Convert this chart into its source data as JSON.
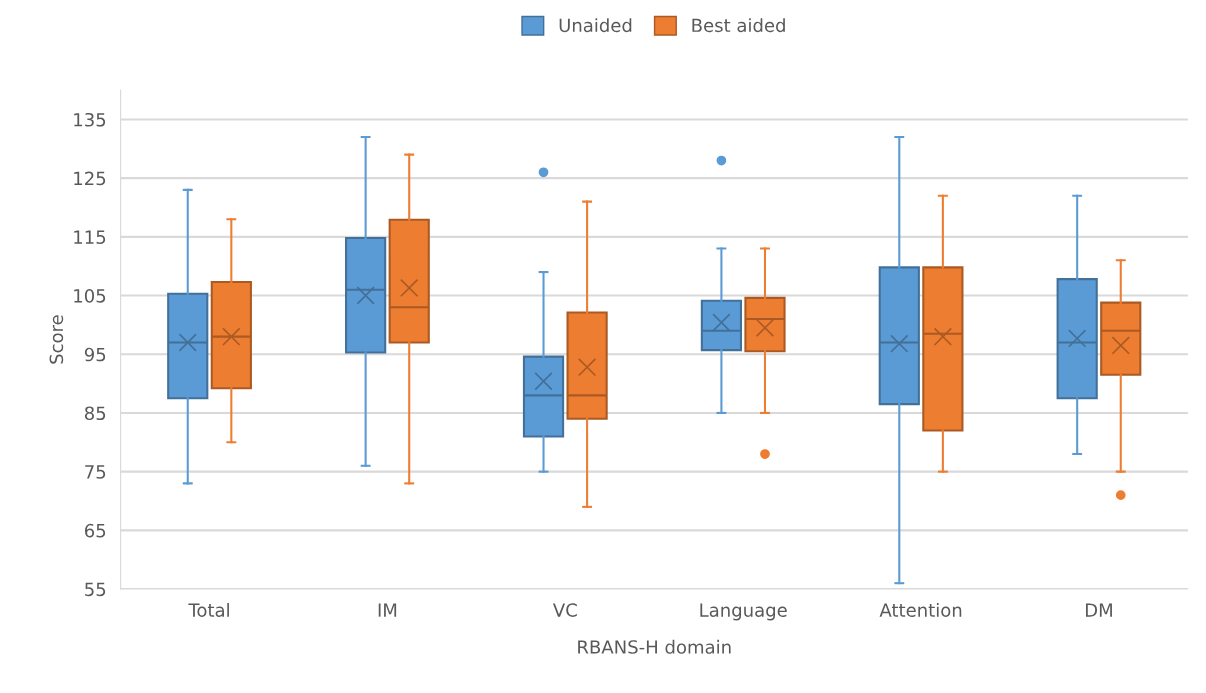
{
  "chart_data": {
    "type": "box",
    "xlabel": "RBANS-H domain",
    "ylabel": "Score",
    "categories": [
      "Total",
      "IM",
      "VC",
      "Language",
      "Attention",
      "DM"
    ],
    "ylim": [
      55,
      140
    ],
    "yticks": [
      55,
      65,
      75,
      85,
      95,
      105,
      115,
      125,
      135
    ],
    "grid": "y",
    "legend": "top",
    "marker": "cross",
    "series": [
      {
        "name": "Unaided",
        "color": "#5b9bd5",
        "boxes": [
          {
            "low": 73,
            "q1": 87.5,
            "median": 97,
            "q3": 105.3,
            "high": 123,
            "mean": 97
          },
          {
            "low": 76,
            "q1": 95.3,
            "median": 106,
            "q3": 114.8,
            "high": 132,
            "mean": 105
          },
          {
            "low": 75,
            "q1": 81,
            "median": 88,
            "q3": 94.6,
            "high": 109,
            "mean": 90.4,
            "outliers": [
              126
            ]
          },
          {
            "low": 85,
            "q1": 95.7,
            "median": 99,
            "q3": 104.1,
            "high": 113,
            "mean": 100.4,
            "outliers": [
              128
            ]
          },
          {
            "low": 56,
            "q1": 86.5,
            "median": 97,
            "q3": 109.8,
            "high": 132,
            "mean": 96.8
          },
          {
            "low": 78,
            "q1": 87.5,
            "median": 97,
            "q3": 107.8,
            "high": 122,
            "mean": 97.7
          }
        ]
      },
      {
        "name": "Best aided",
        "color": "#ed7d31",
        "boxes": [
          {
            "low": 80,
            "q1": 89.2,
            "median": 98,
            "q3": 107.3,
            "high": 118,
            "mean": 98
          },
          {
            "low": 73,
            "q1": 97,
            "median": 103,
            "q3": 117.9,
            "high": 129,
            "mean": 106.3
          },
          {
            "low": 69,
            "q1": 84,
            "median": 88,
            "q3": 102.1,
            "high": 121,
            "mean": 92.8
          },
          {
            "low": 85,
            "q1": 95.5,
            "median": 101,
            "q3": 104.6,
            "high": 113,
            "mean": 99.5,
            "outliers": [
              78
            ]
          },
          {
            "low": 75,
            "q1": 82,
            "median": 98.5,
            "q3": 109.8,
            "high": 122,
            "mean": 98
          },
          {
            "low": 75,
            "q1": 91.5,
            "median": 99,
            "q3": 103.8,
            "high": 111,
            "mean": 96.5,
            "outliers": [
              71
            ]
          }
        ]
      }
    ]
  }
}
